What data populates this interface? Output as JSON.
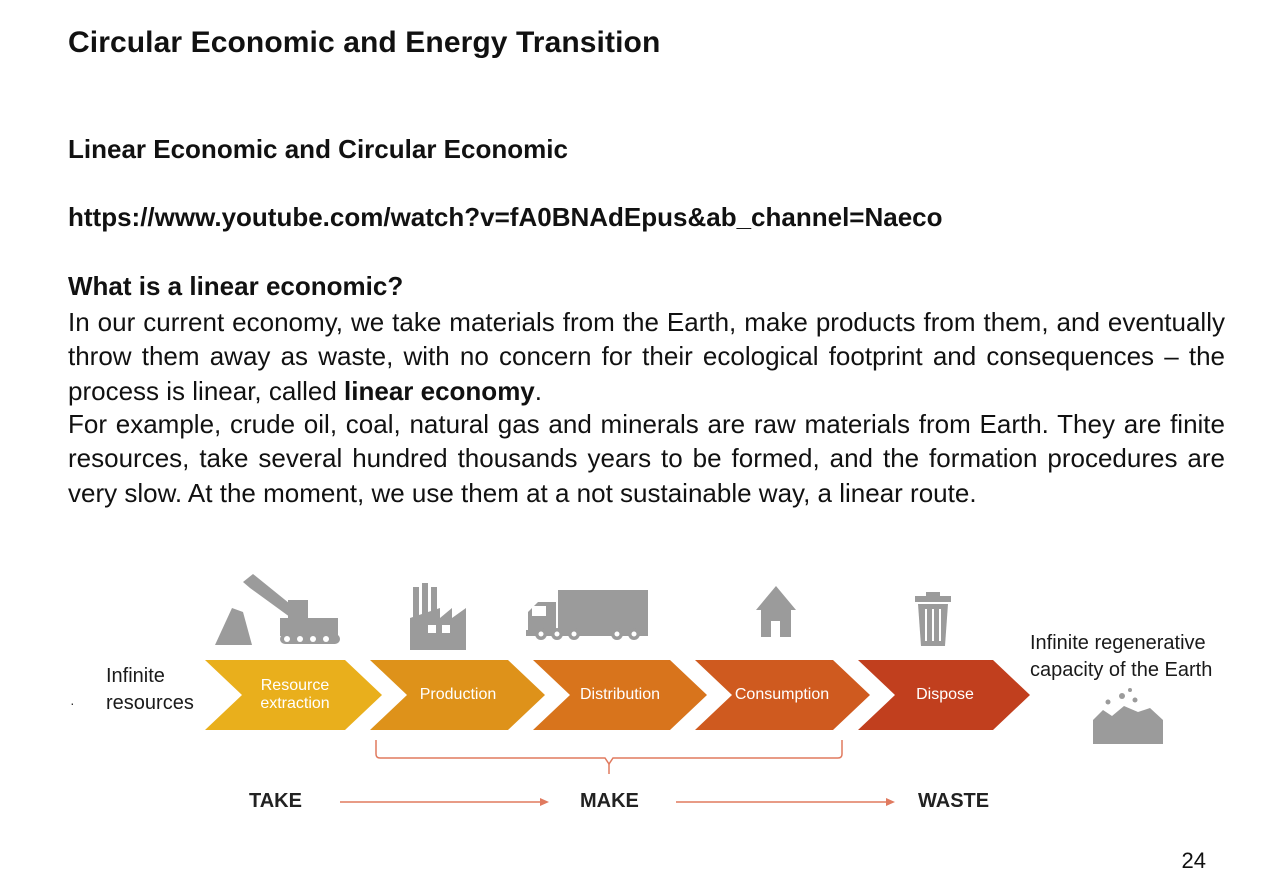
{
  "title": "Circular Economic and Energy Transition",
  "subheading": "Linear Economic and Circular Economic",
  "video_link": "https://www.youtube.com/watch?v=fA0BNAdEpus&ab_channel=Naeco",
  "question": "What is a linear economic?",
  "paragraph1": {
    "lead": "In our current economy, we take materials from the Earth, make products from them, and eventually throw them away as waste, with no concern for their ecological footprint and consequences – the process is linear, called ",
    "emphasis": "linear economy",
    "tail": "."
  },
  "paragraph2": "For example, crude oil, coal, natural gas and minerals are raw materials from Earth. They are finite resources, take several hundred thousands years to be formed, and the formation procedures are very slow. At the moment, we use them at a not sustainable way, a linear route.",
  "diagram": {
    "left_label_line1": "Infinite",
    "left_label_line2": "resources",
    "bullet": "·",
    "right_label_line1": "Infinite regenerative",
    "right_label_line2": "capacity of the Earth",
    "stages": [
      {
        "line1": "Resource",
        "line2": "extraction",
        "color": "#E9AF1C",
        "icon": "excavator-icon"
      },
      {
        "line1": "Production",
        "line2": "",
        "color": "#DE921A",
        "icon": "factory-icon"
      },
      {
        "line1": "Distribution",
        "line2": "",
        "color": "#D8741C",
        "icon": "truck-icon"
      },
      {
        "line1": "Consumption",
        "line2": "",
        "color": "#CF5A1F",
        "icon": "house-icon"
      },
      {
        "line1": "Dispose",
        "line2": "",
        "color": "#C13F1E",
        "icon": "trash-can-icon"
      }
    ],
    "phases": {
      "take": "TAKE",
      "make": "MAKE",
      "waste": "WASTE"
    },
    "accent_arrow_color": "#E07A5F",
    "icon_color": "#9B9B9B"
  },
  "page_number": "24"
}
